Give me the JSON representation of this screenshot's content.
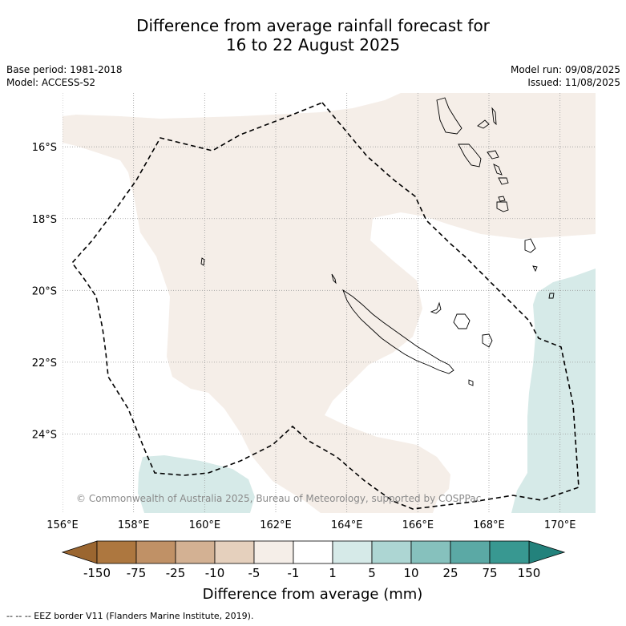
{
  "header": {
    "title_line1": "Difference from average rainfall forecast for",
    "title_line2": "16 to 22 August 2025"
  },
  "meta": {
    "base_period": "Base period: 1981-2018",
    "model": "Model: ACCESS-S2",
    "model_run": "Model run: 09/08/2025",
    "issued": "Issued: 11/08/2025"
  },
  "map": {
    "extent": {
      "lon": [
        156,
        171
      ],
      "lat": [
        -26.2,
        -14.5
      ]
    },
    "lat_ticks": [
      {
        "value": -16,
        "label": "16°S"
      },
      {
        "value": -18,
        "label": "18°S"
      },
      {
        "value": -20,
        "label": "20°S"
      },
      {
        "value": -22,
        "label": "22°S"
      },
      {
        "value": -24,
        "label": "24°S"
      }
    ],
    "lon_ticks": [
      {
        "value": 156,
        "label": "156°E"
      },
      {
        "value": 158,
        "label": "158°E"
      },
      {
        "value": 160,
        "label": "160°E"
      },
      {
        "value": 162,
        "label": "162°E"
      },
      {
        "value": 164,
        "label": "164°E"
      },
      {
        "value": 166,
        "label": "166°E"
      },
      {
        "value": 168,
        "label": "168°E"
      },
      {
        "value": 170,
        "label": "170°E"
      }
    ],
    "copyright": "© Commonwealth of Australia 2025, Bureau of Meteorology, supported by COSPPac",
    "colors": {
      "slightly_dry": "#f5eee8",
      "slightly_wet": "#d6eae8",
      "eez_border": "#000000",
      "coastline": "#000000",
      "gridline": "#9a9a9a"
    }
  },
  "colorbar": {
    "labels": [
      "-150",
      "-75",
      "-25",
      "-10",
      "-5",
      "-1",
      "1",
      "5",
      "10",
      "25",
      "75",
      "150"
    ],
    "colors": [
      "#ad773f",
      "#c09166",
      "#d3b193",
      "#e5d0bd",
      "#f5eee8",
      "#ffffff",
      "#d6eae8",
      "#add6d3",
      "#86c1bd",
      "#5ba9a5",
      "#389891"
    ],
    "under_color": "#9b6630",
    "over_color": "#23827c",
    "title": "Difference from average (mm)"
  },
  "footnote": "-- -- -- EEZ border V11 (Flanders Marine Institute, 2019)."
}
